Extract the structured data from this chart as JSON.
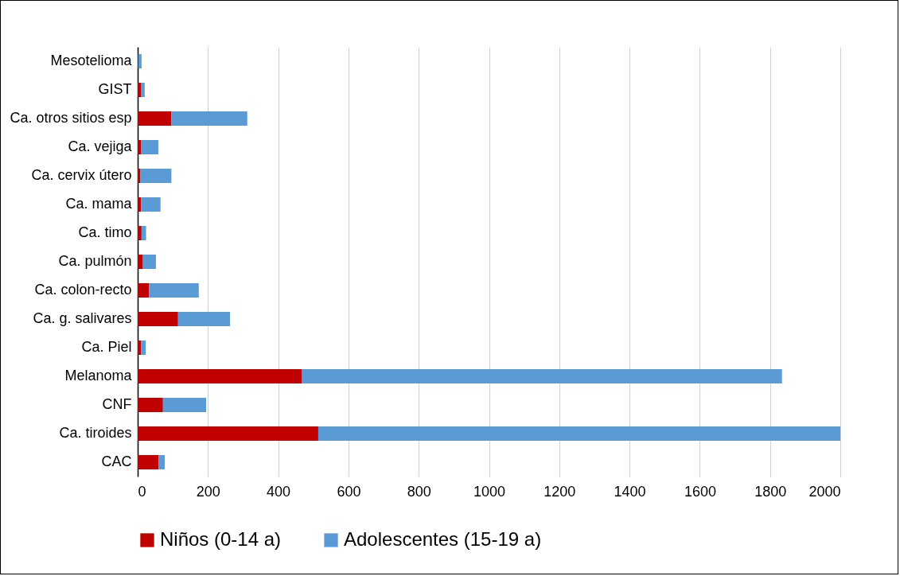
{
  "chart_data": {
    "type": "bar",
    "orientation": "horizontal",
    "stacked": true,
    "categories": [
      "Mesotelioma",
      "GIST",
      "Ca. otros sitios esp",
      "Ca. vejiga",
      "Ca. cervix útero",
      "Ca. mama",
      "Ca. timo",
      "Ca. pulmón",
      "Ca. colon-recto",
      "Ca. g. salivares",
      "Ca. Piel",
      "Melanoma",
      "CNF",
      "Ca. tiroides",
      "CAC"
    ],
    "series": [
      {
        "name": "Niños (0-14 a)",
        "color": "#c00000",
        "values": [
          2,
          9,
          96,
          9,
          8,
          10,
          11,
          15,
          32,
          115,
          10,
          468,
          72,
          514,
          60
        ]
      },
      {
        "name": "Adolescentes (15-19 a)",
        "color": "#5b9bd5",
        "values": [
          9,
          11,
          216,
          50,
          88,
          55,
          13,
          37,
          142,
          148,
          13,
          1366,
          123,
          1486,
          17
        ]
      }
    ],
    "xlim": [
      0,
      2000
    ],
    "xticks": [
      0,
      200,
      400,
      600,
      800,
      1000,
      1200,
      1400,
      1600,
      1800,
      2000
    ],
    "grid": "x",
    "legend": "bottom"
  }
}
